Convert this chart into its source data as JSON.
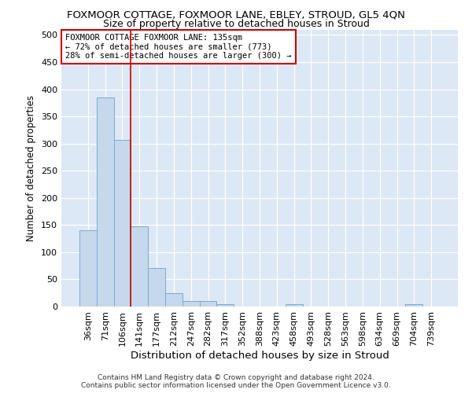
{
  "title": "FOXMOOR COTTAGE, FOXMOOR LANE, EBLEY, STROUD, GL5 4QN",
  "subtitle": "Size of property relative to detached houses in Stroud",
  "xlabel": "Distribution of detached houses by size in Stroud",
  "ylabel": "Number of detached properties",
  "categories": [
    "36sqm",
    "71sqm",
    "106sqm",
    "141sqm",
    "177sqm",
    "212sqm",
    "247sqm",
    "282sqm",
    "317sqm",
    "352sqm",
    "388sqm",
    "423sqm",
    "458sqm",
    "493sqm",
    "528sqm",
    "563sqm",
    "598sqm",
    "634sqm",
    "669sqm",
    "704sqm",
    "739sqm"
  ],
  "values": [
    140,
    385,
    307,
    148,
    71,
    24,
    10,
    10,
    5,
    0,
    0,
    0,
    5,
    0,
    0,
    0,
    0,
    0,
    0,
    5,
    0
  ],
  "bar_color": "#c5d8ec",
  "bar_edge_color": "#7aabcc",
  "marker_label_line1": "FOXMOOR COTTAGE FOXMOOR LANE: 135sqm",
  "marker_label_line2": "← 72% of detached houses are smaller (773)",
  "marker_label_line3": "28% of semi-detached houses are larger (300) →",
  "annotation_box_color": "#ffffff",
  "annotation_border_color": "#cc0000",
  "vline_x": 2.5,
  "vline_color": "#cc0000",
  "ylim": [
    0,
    510
  ],
  "yticks": [
    0,
    50,
    100,
    150,
    200,
    250,
    300,
    350,
    400,
    450,
    500
  ],
  "footer1": "Contains HM Land Registry data © Crown copyright and database right 2024.",
  "footer2": "Contains public sector information licensed under the Open Government Licence v3.0.",
  "plot_bg_color": "#dce8f5",
  "title_fontsize": 9.5,
  "subtitle_fontsize": 9,
  "xlabel_fontsize": 9.5,
  "ylabel_fontsize": 8.5,
  "tick_fontsize": 8,
  "annot_fontsize": 7.5,
  "footer_fontsize": 6.5
}
